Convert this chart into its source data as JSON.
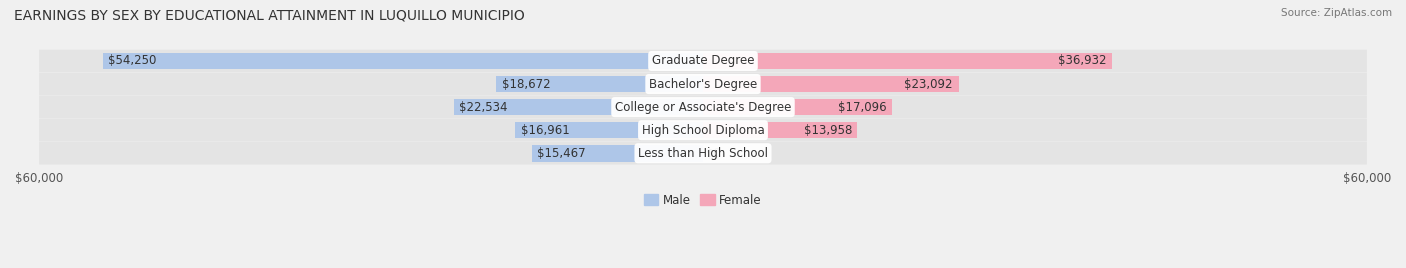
{
  "title": "EARNINGS BY SEX BY EDUCATIONAL ATTAINMENT IN LUQUILLO MUNICIPIO",
  "source": "Source: ZipAtlas.com",
  "categories": [
    "Less than High School",
    "High School Diploma",
    "College or Associate's Degree",
    "Bachelor's Degree",
    "Graduate Degree"
  ],
  "male_values": [
    15467,
    16961,
    22534,
    18672,
    54250
  ],
  "female_values": [
    0,
    13958,
    17096,
    23092,
    36932
  ],
  "male_color": "#aec6e8",
  "female_color": "#f4a7b9",
  "background_color": "#f0f0f0",
  "bar_background": "#e8e8e8",
  "x_max": 60000,
  "x_min": -60000,
  "xlabel_left": "$60,000",
  "xlabel_right": "$60,000",
  "legend_male": "Male",
  "legend_female": "Female",
  "title_fontsize": 10,
  "label_fontsize": 8.5,
  "tick_fontsize": 8.5
}
